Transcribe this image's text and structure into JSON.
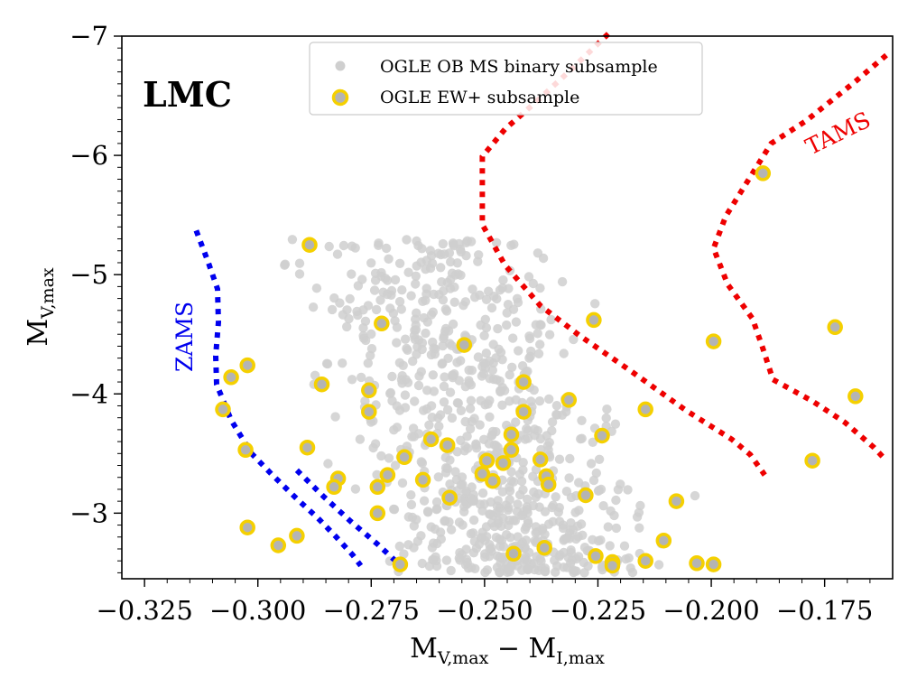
{
  "chart_data": {
    "type": "scatter",
    "region_label": "LMC",
    "xlabel": {
      "main": "M",
      "sub1": "V,max",
      "minus": " − M",
      "sub2": "I,max"
    },
    "ylabel": {
      "main": "M",
      "sub": "V,max"
    },
    "xlim": [
      -0.33,
      -0.16
    ],
    "ylim": [
      -2.45,
      -7.0
    ],
    "x_ticks": [
      -0.325,
      -0.3,
      -0.275,
      -0.25,
      -0.225,
      -0.2,
      -0.175
    ],
    "x_tick_labels": [
      "−0.325",
      "−0.300",
      "−0.275",
      "−0.250",
      "−0.225",
      "−0.200",
      "−0.175"
    ],
    "y_ticks": [
      -3,
      -4,
      -5,
      -6,
      -7
    ],
    "y_tick_labels": [
      "−3",
      "−4",
      "−5",
      "−6",
      "−7"
    ],
    "legend": {
      "position": "top-center",
      "entries": [
        {
          "label": "OGLE OB MS binary subsample",
          "marker": "gray-dot"
        },
        {
          "label": "OGLE EW+ subsample",
          "marker": "yellow-ring"
        }
      ]
    },
    "colors": {
      "background_points": "#cfcfcf",
      "ew_fill": "#b4b4b4",
      "ew_edge": "#f5d000",
      "zams": "#0000ee",
      "tams": "#ee0000"
    },
    "zams": {
      "label": "ZAMS",
      "points": [
        [
          -0.3136,
          -5.37
        ],
        [
          -0.3109,
          -5.1
        ],
        [
          -0.3089,
          -4.88
        ],
        [
          -0.3087,
          -4.6
        ],
        [
          -0.3093,
          -4.32
        ],
        [
          -0.3091,
          -4.08
        ],
        [
          -0.3059,
          -3.78
        ],
        [
          -0.3014,
          -3.5
        ],
        [
          -0.2968,
          -3.32
        ],
        [
          -0.2914,
          -3.12
        ],
        [
          -0.2868,
          -2.96
        ],
        [
          -0.2827,
          -2.8
        ],
        [
          -0.2791,
          -2.65
        ],
        [
          -0.2773,
          -2.56
        ]
      ],
      "points_lower": [
        [
          -0.2914,
          -3.36
        ],
        [
          -0.2855,
          -3.14
        ],
        [
          -0.2795,
          -2.93
        ],
        [
          -0.2736,
          -2.74
        ],
        [
          -0.2691,
          -2.58
        ],
        [
          -0.2677,
          -2.53
        ]
      ]
    },
    "tams": {
      "label": "TAMS",
      "left": [
        [
          -0.2227,
          -7.02
        ],
        [
          -0.2309,
          -6.72
        ],
        [
          -0.2386,
          -6.45
        ],
        [
          -0.2455,
          -6.22
        ],
        [
          -0.2505,
          -5.99
        ],
        [
          -0.2505,
          -5.71
        ],
        [
          -0.2505,
          -5.42
        ],
        [
          -0.2455,
          -5.08
        ],
        [
          -0.2377,
          -4.74
        ],
        [
          -0.2291,
          -4.49
        ],
        [
          -0.2173,
          -4.18
        ],
        [
          -0.2055,
          -3.86
        ],
        [
          -0.1955,
          -3.62
        ],
        [
          -0.1914,
          -3.49
        ],
        [
          -0.1882,
          -3.32
        ]
      ],
      "right": [
        [
          -0.1614,
          -6.84
        ],
        [
          -0.1682,
          -6.62
        ],
        [
          -0.1791,
          -6.29
        ],
        [
          -0.1868,
          -6.1
        ],
        [
          -0.1914,
          -5.82
        ],
        [
          -0.1968,
          -5.49
        ],
        [
          -0.1995,
          -5.22
        ],
        [
          -0.1964,
          -4.92
        ],
        [
          -0.1909,
          -4.63
        ],
        [
          -0.1886,
          -4.38
        ],
        [
          -0.1864,
          -4.12
        ],
        [
          -0.1777,
          -3.94
        ],
        [
          -0.1705,
          -3.76
        ],
        [
          -0.1641,
          -3.55
        ],
        [
          -0.1614,
          -3.44
        ]
      ]
    },
    "ew_series": {
      "name": "OGLE EW+ subsample",
      "points": [
        [
          -0.2886,
          -5.25
        ],
        [
          -0.1886,
          -5.85
        ],
        [
          -0.2259,
          -4.62
        ],
        [
          -0.2727,
          -4.59
        ],
        [
          -0.2545,
          -4.41
        ],
        [
          -0.1995,
          -4.44
        ],
        [
          -0.1727,
          -4.56
        ],
        [
          -0.3059,
          -4.14
        ],
        [
          -0.3023,
          -4.24
        ],
        [
          -0.2859,
          -4.08
        ],
        [
          -0.2755,
          -4.03
        ],
        [
          -0.2414,
          -4.1
        ],
        [
          -0.2314,
          -3.95
        ],
        [
          -0.1682,
          -3.98
        ],
        [
          -0.3077,
          -3.87
        ],
        [
          -0.2755,
          -3.85
        ],
        [
          -0.2414,
          -3.85
        ],
        [
          -0.2145,
          -3.87
        ],
        [
          -0.2241,
          -3.65
        ],
        [
          -0.2618,
          -3.62
        ],
        [
          -0.2582,
          -3.57
        ],
        [
          -0.2441,
          -3.66
        ],
        [
          -0.3027,
          -3.53
        ],
        [
          -0.2891,
          -3.55
        ],
        [
          -0.2677,
          -3.47
        ],
        [
          -0.2441,
          -3.53
        ],
        [
          -0.2377,
          -3.45
        ],
        [
          -0.1777,
          -3.44
        ],
        [
          -0.2495,
          -3.44
        ],
        [
          -0.2459,
          -3.42
        ],
        [
          -0.2364,
          -3.31
        ],
        [
          -0.2714,
          -3.32
        ],
        [
          -0.2823,
          -3.29
        ],
        [
          -0.2832,
          -3.22
        ],
        [
          -0.2736,
          -3.22
        ],
        [
          -0.2636,
          -3.28
        ],
        [
          -0.2505,
          -3.33
        ],
        [
          -0.2482,
          -3.27
        ],
        [
          -0.2359,
          -3.24
        ],
        [
          -0.2277,
          -3.15
        ],
        [
          -0.2577,
          -3.13
        ],
        [
          -0.2077,
          -3.1
        ],
        [
          -0.2736,
          -3.0
        ],
        [
          -0.3023,
          -2.88
        ],
        [
          -0.2914,
          -2.81
        ],
        [
          -0.2955,
          -2.73
        ],
        [
          -0.2105,
          -2.77
        ],
        [
          -0.2686,
          -2.57
        ],
        [
          -0.2436,
          -2.66
        ],
        [
          -0.2368,
          -2.71
        ],
        [
          -0.2255,
          -2.64
        ],
        [
          -0.2218,
          -2.59
        ],
        [
          -0.2218,
          -2.56
        ],
        [
          -0.2145,
          -2.6
        ],
        [
          -0.2032,
          -2.58
        ],
        [
          -0.1995,
          -2.57
        ]
      ]
    }
  }
}
